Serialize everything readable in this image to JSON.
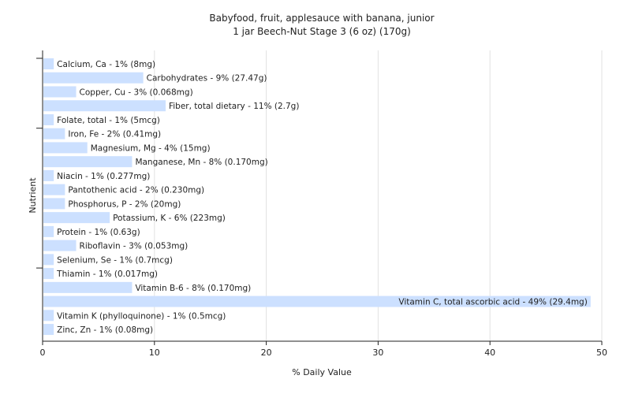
{
  "chart_data": {
    "type": "bar",
    "orientation": "horizontal",
    "title": "Babyfood, fruit, applesauce with banana, junior",
    "subtitle": "1 jar Beech-Nut Stage 3 (6 oz) (170g)",
    "xlabel": "% Daily Value",
    "ylabel": "Nutrient",
    "xlim": [
      0,
      50
    ],
    "xticks": [
      0,
      10,
      20,
      30,
      40,
      50
    ],
    "grid": true,
    "bar_color": "#cce0ff",
    "categories": [
      "Calcium, Ca",
      "Carbohydrates",
      "Copper, Cu",
      "Fiber, total dietary",
      "Folate, total",
      "Iron, Fe",
      "Magnesium, Mg",
      "Manganese, Mn",
      "Niacin",
      "Pantothenic acid",
      "Phosphorus, P",
      "Potassium, K",
      "Protein",
      "Riboflavin",
      "Selenium, Se",
      "Thiamin",
      "Vitamin B-6",
      "Vitamin C, total ascorbic acid",
      "Vitamin K (phylloquinone)",
      "Zinc, Zn"
    ],
    "values": [
      1,
      9,
      3,
      11,
      1,
      2,
      4,
      8,
      1,
      2,
      2,
      6,
      1,
      3,
      1,
      1,
      8,
      49,
      1,
      1
    ],
    "labels": [
      "Calcium, Ca - 1% (8mg)",
      "Carbohydrates - 9% (27.47g)",
      "Copper, Cu - 3% (0.068mg)",
      "Fiber, total dietary - 11% (2.7g)",
      "Folate, total - 1% (5mcg)",
      "Iron, Fe - 2% (0.41mg)",
      "Magnesium, Mg - 4% (15mg)",
      "Manganese, Mn - 8% (0.170mg)",
      "Niacin - 1% (0.277mg)",
      "Pantothenic acid - 2% (0.230mg)",
      "Phosphorus, P - 2% (20mg)",
      "Potassium, K - 6% (223mg)",
      "Protein - 1% (0.63g)",
      "Riboflavin - 3% (0.053mg)",
      "Selenium, Se - 1% (0.7mcg)",
      "Thiamin - 1% (0.017mg)",
      "Vitamin B-6 - 8% (0.170mg)",
      "Vitamin C, total ascorbic acid - 49% (29.4mg)",
      "Vitamin K (phylloquinone) - 1% (0.5mcg)",
      "Zinc, Zn - 1% (0.08mg)"
    ]
  }
}
